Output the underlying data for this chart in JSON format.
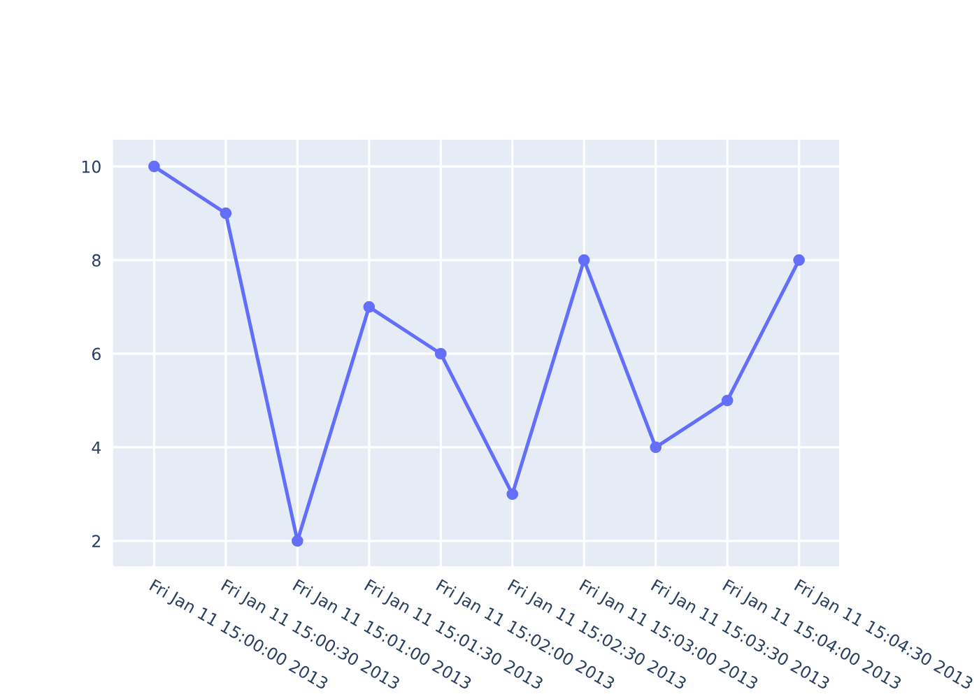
{
  "chart_data": {
    "type": "line",
    "categories": [
      "Fri Jan 11 15:00:00 2013",
      "Fri Jan 11 15:00:30 2013",
      "Fri Jan 11 15:01:00 2013",
      "Fri Jan 11 15:01:30 2013",
      "Fri Jan 11 15:02:00 2013",
      "Fri Jan 11 15:02:30 2013",
      "Fri Jan 11 15:03:00 2013",
      "Fri Jan 11 15:03:30 2013",
      "Fri Jan 11 15:04:00 2013",
      "Fri Jan 11 15:04:30 2013"
    ],
    "series": [
      {
        "color": "#636efa",
        "values": [
          10,
          9,
          2,
          7,
          6,
          3,
          8,
          4,
          5,
          8
        ]
      }
    ],
    "ylim": [
      1.46,
      10.57
    ],
    "yticks": [
      2,
      4,
      6,
      8,
      10
    ],
    "grid": true,
    "marker": "circle",
    "line_style": "solid",
    "legend": false
  }
}
